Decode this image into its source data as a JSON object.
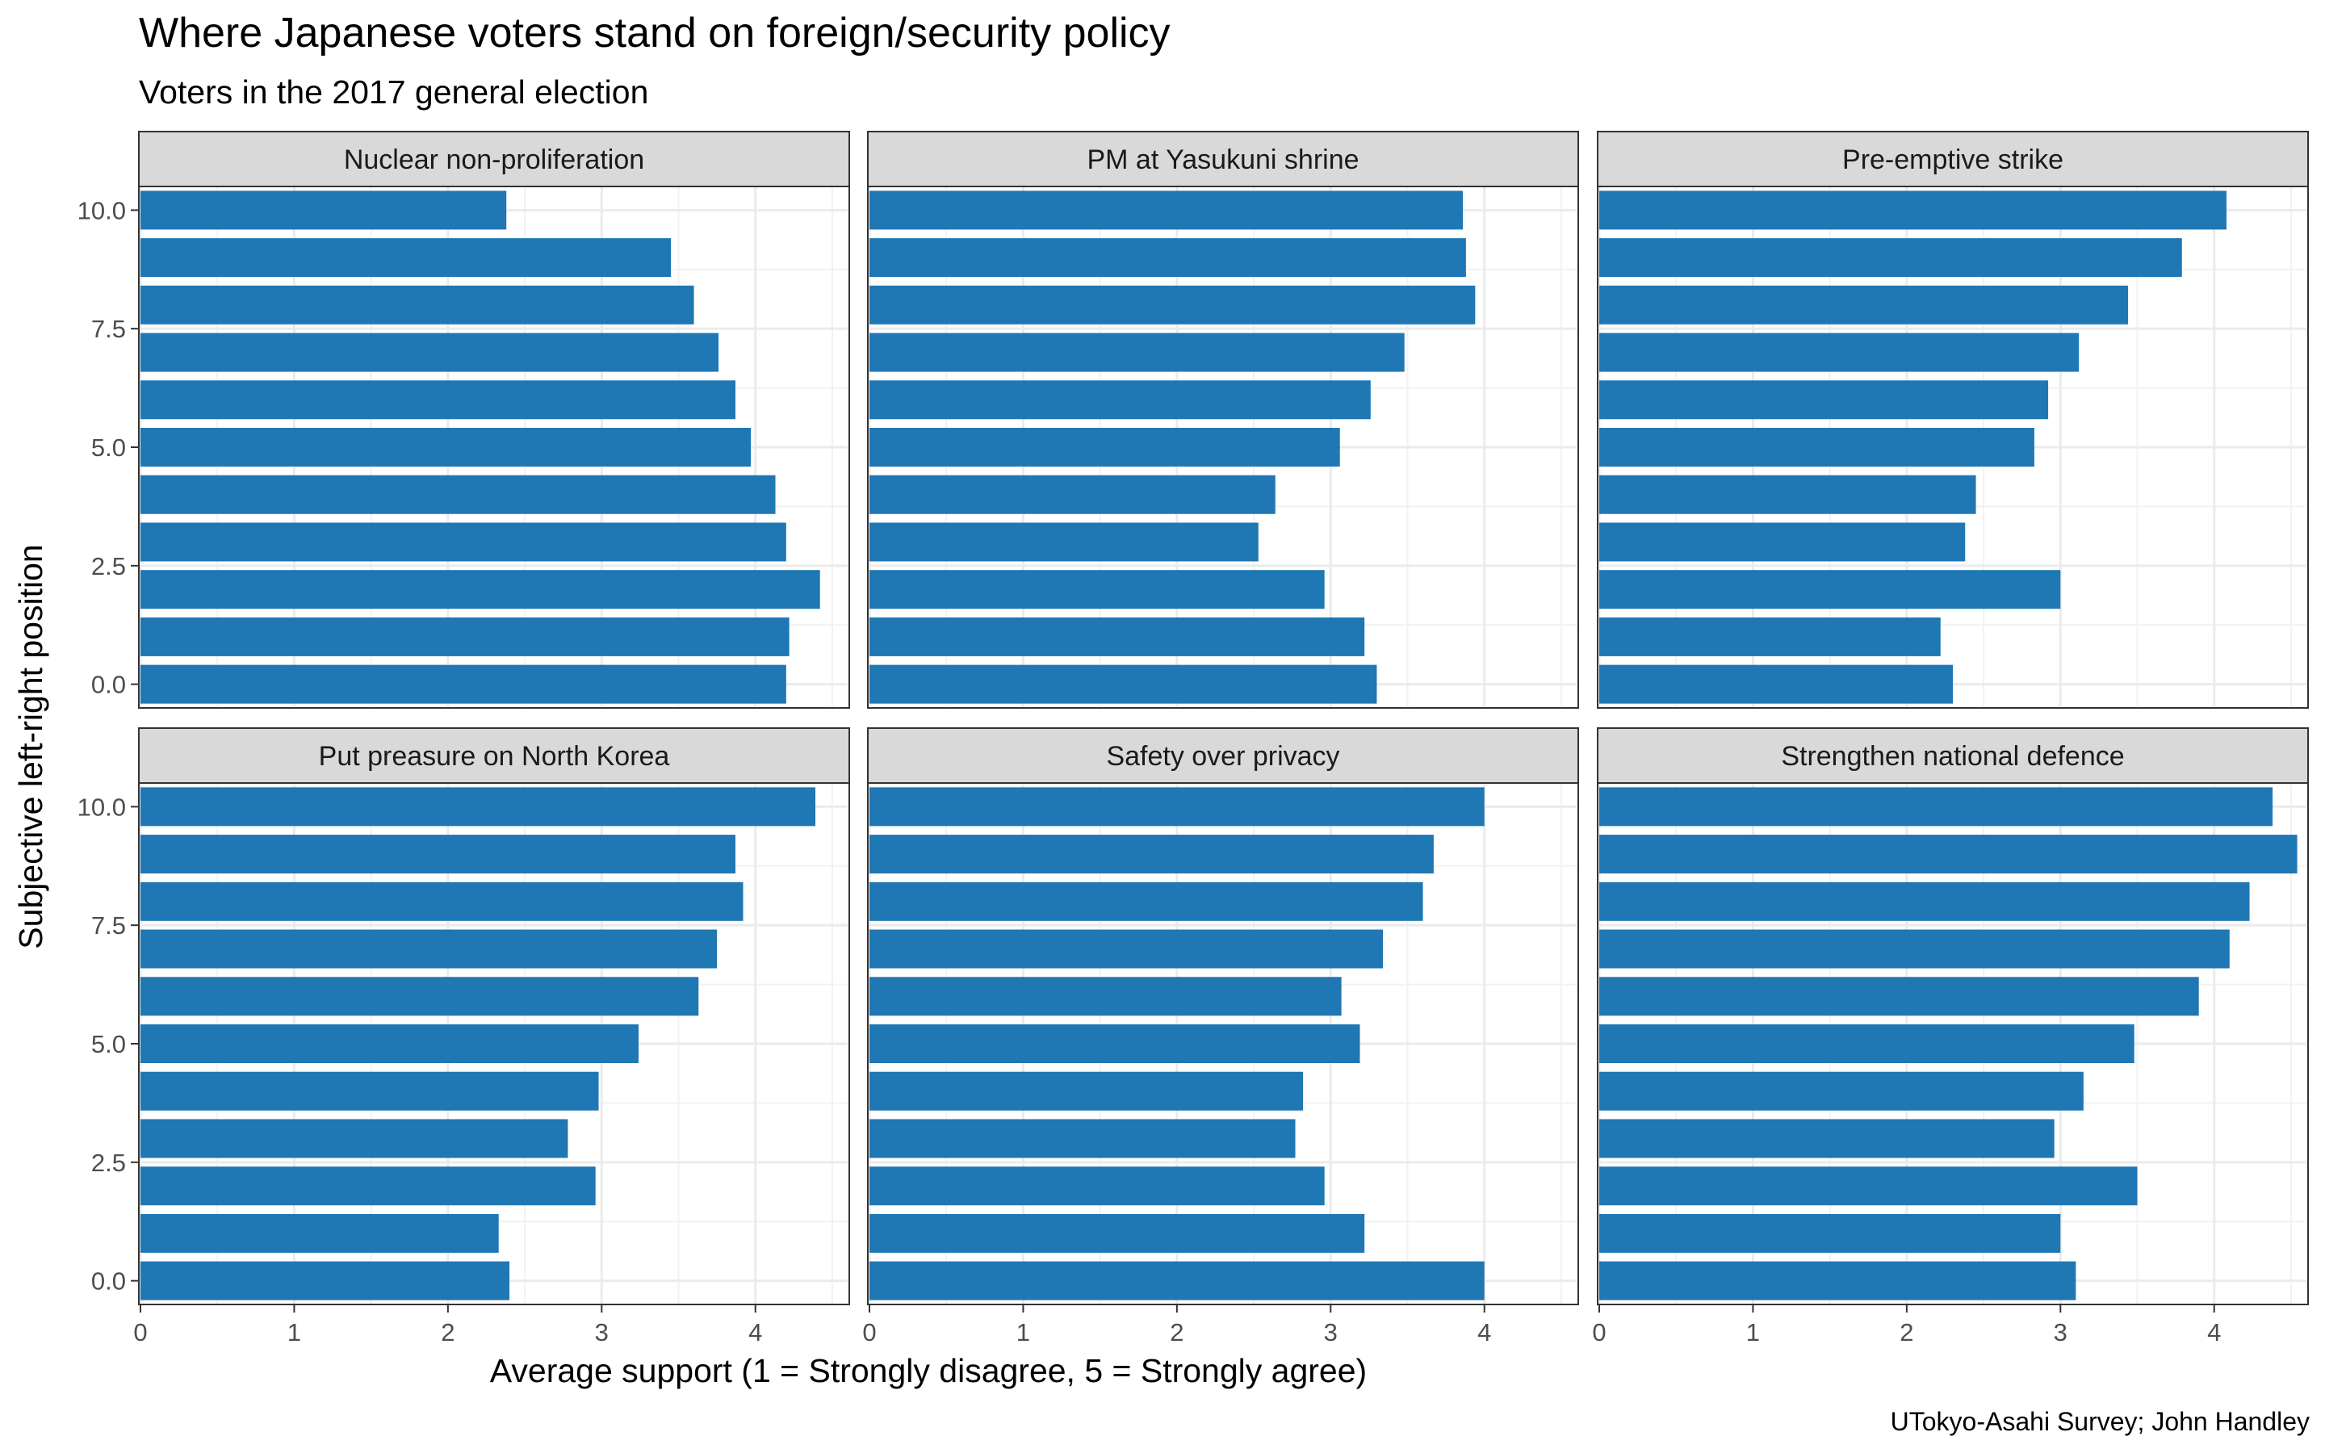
{
  "chart_data": {
    "type": "bar",
    "orientation": "horizontal",
    "title": "Where Japanese voters stand on foreign/security policy",
    "subtitle": "Voters in the 2017 general election",
    "xlabel": "Average support (1 = Strongly disagree, 5 = Strongly agree)",
    "ylabel": "Subjective left-right position",
    "caption": "UTokyo-Asahi Survey; John Handley",
    "xlim": [
      0,
      4.6
    ],
    "ylim": [
      -0.5,
      10.5
    ],
    "x_ticks": [
      "0",
      "1",
      "2",
      "3",
      "4"
    ],
    "y_ticks": [
      "0.0",
      "2.5",
      "5.0",
      "7.5",
      "10.0"
    ],
    "y_positions": [
      0,
      1,
      2,
      3,
      4,
      5,
      6,
      7,
      8,
      9,
      10
    ],
    "grid": true,
    "bar_color": "#1f77b4",
    "panels": [
      {
        "name": "Nuclear non-proliferation",
        "values": [
          4.2,
          4.22,
          4.42,
          4.2,
          4.13,
          3.97,
          3.87,
          3.76,
          3.6,
          3.45,
          2.38
        ]
      },
      {
        "name": "PM at Yasukuni shrine",
        "values": [
          3.3,
          3.22,
          2.96,
          2.53,
          2.64,
          3.06,
          3.26,
          3.48,
          3.94,
          3.88,
          3.86
        ]
      },
      {
        "name": "Pre-emptive strike",
        "values": [
          2.3,
          2.22,
          3.0,
          2.38,
          2.45,
          2.83,
          2.92,
          3.12,
          3.44,
          3.79,
          4.08
        ]
      },
      {
        "name": "Put preasure on North Korea",
        "values": [
          2.4,
          2.33,
          2.96,
          2.78,
          2.98,
          3.24,
          3.63,
          3.75,
          3.92,
          3.87,
          4.39
        ]
      },
      {
        "name": "Safety over privacy",
        "values": [
          4.0,
          3.22,
          2.96,
          2.77,
          2.82,
          3.19,
          3.07,
          3.34,
          3.6,
          3.67,
          4.0
        ]
      },
      {
        "name": "Strengthen national defence",
        "values": [
          3.1,
          3.0,
          3.5,
          2.96,
          3.15,
          3.48,
          3.9,
          4.1,
          4.23,
          4.54,
          4.38
        ]
      }
    ]
  }
}
